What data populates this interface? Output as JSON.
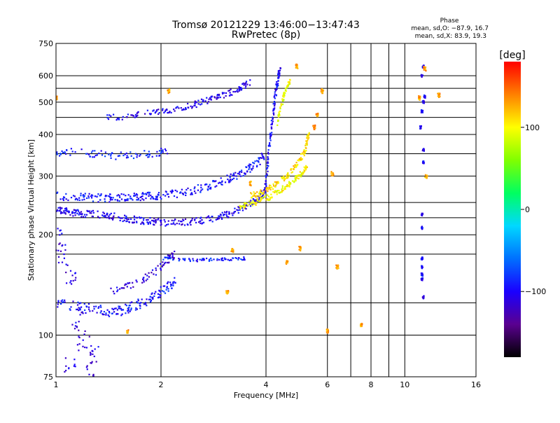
{
  "chart_data": {
    "type": "scatter",
    "title": "Tromsø 20121229 13:46:00−13:47:43",
    "subtitle": "RwPretec (8p)",
    "xlabel": "Frequency [MHz]",
    "ylabel": "Stationary phase Virtual Height [km]",
    "x_scale": "log",
    "y_scale": "log",
    "xlim": [
      1,
      16
    ],
    "ylim": [
      75,
      750
    ],
    "x_ticks": [
      1,
      2,
      4,
      6,
      8,
      10,
      16
    ],
    "x_tick_labels": [
      "1",
      "2",
      "4",
      "6",
      "8",
      "10",
      "16"
    ],
    "x_extra_gridlines": [
      7,
      9
    ],
    "y_ticks": [
      75,
      100,
      200,
      300,
      400,
      500,
      600,
      750
    ],
    "y_tick_labels": [
      "75",
      "100",
      "200",
      "300",
      "400",
      "500",
      "600",
      "750"
    ],
    "y_extra_gridlines": [
      125,
      175,
      225,
      250,
      350,
      450,
      550
    ],
    "grid": true,
    "stats": {
      "heading": "Phase",
      "line_o": "mean, sd,O: −87.9, 16.7",
      "line_x": "mean, sd,X:  83.9, 19.3"
    },
    "colorbar": {
      "unit_label": "[deg]",
      "range": [
        -180,
        180
      ],
      "ticks": [
        100,
        0,
        -100
      ],
      "tick_labels": [
        "100",
        "0",
        "−100"
      ],
      "colors": [
        "#000000",
        "#5a0090",
        "#1a00ff",
        "#0070ff",
        "#00d8ff",
        "#00ff60",
        "#80ff00",
        "#ffff00",
        "#ff8000",
        "#ff0000"
      ]
    },
    "traces": [
      {
        "name": "o_F_lower",
        "phase": -105,
        "points": [
          [
            1.0,
            238
          ],
          [
            1.05,
            236
          ],
          [
            1.1,
            234
          ],
          [
            1.15,
            233
          ],
          [
            1.2,
            232
          ],
          [
            1.3,
            230
          ],
          [
            1.4,
            228
          ],
          [
            1.5,
            226
          ],
          [
            1.6,
            224
          ],
          [
            1.7,
            222
          ],
          [
            1.8,
            220
          ],
          [
            1.9,
            219
          ],
          [
            2.0,
            218
          ],
          [
            2.2,
            218
          ],
          [
            2.4,
            219
          ],
          [
            2.6,
            221
          ],
          [
            2.8,
            224
          ],
          [
            3.0,
            228
          ],
          [
            3.2,
            233
          ],
          [
            3.4,
            240
          ],
          [
            3.6,
            248
          ],
          [
            3.8,
            258
          ],
          [
            3.95,
            268
          ]
        ],
        "spread": 0.05
      },
      {
        "name": "o_F_upper",
        "phase": -95,
        "points": [
          [
            1.0,
            262
          ],
          [
            1.1,
            260
          ],
          [
            1.2,
            259
          ],
          [
            1.3,
            258
          ],
          [
            1.4,
            258
          ],
          [
            1.5,
            258
          ],
          [
            1.6,
            259
          ],
          [
            1.7,
            260
          ],
          [
            1.8,
            261
          ],
          [
            1.9,
            262
          ],
          [
            2.0,
            263
          ],
          [
            2.2,
            266
          ],
          [
            2.4,
            270
          ],
          [
            2.6,
            276
          ],
          [
            2.8,
            283
          ],
          [
            3.0,
            290
          ],
          [
            3.2,
            298
          ],
          [
            3.4,
            307
          ],
          [
            3.6,
            318
          ],
          [
            3.8,
            330
          ],
          [
            3.95,
            345
          ]
        ],
        "spread": 0.055
      },
      {
        "name": "o_F_cusp",
        "phase": -100,
        "points": [
          [
            3.95,
            260
          ],
          [
            4.0,
            290
          ],
          [
            4.05,
            330
          ],
          [
            4.1,
            380
          ],
          [
            4.15,
            420
          ],
          [
            4.2,
            470
          ],
          [
            4.25,
            520
          ],
          [
            4.3,
            560
          ],
          [
            4.35,
            600
          ],
          [
            4.4,
            640
          ]
        ],
        "spread": 0.035
      },
      {
        "name": "x_F_lower",
        "phase": 100,
        "points": [
          [
            3.3,
            242
          ],
          [
            3.5,
            246
          ],
          [
            3.7,
            250
          ],
          [
            3.9,
            255
          ],
          [
            4.1,
            260
          ],
          [
            4.3,
            268
          ],
          [
            4.5,
            276
          ],
          [
            4.7,
            285
          ],
          [
            4.9,
            296
          ],
          [
            5.1,
            308
          ],
          [
            5.25,
            320
          ]
        ],
        "spread": 0.04
      },
      {
        "name": "x_F_upper",
        "phase": 110,
        "points": [
          [
            3.6,
            262
          ],
          [
            3.8,
            266
          ],
          [
            4.0,
            272
          ],
          [
            4.2,
            280
          ],
          [
            4.4,
            290
          ],
          [
            4.6,
            302
          ],
          [
            4.8,
            318
          ],
          [
            5.0,
            336
          ],
          [
            5.15,
            355
          ],
          [
            5.25,
            380
          ],
          [
            5.3,
            400
          ]
        ],
        "spread": 0.04
      },
      {
        "name": "x_F_cusp",
        "phase": 95,
        "points": [
          [
            4.3,
            430
          ],
          [
            4.4,
            480
          ],
          [
            4.5,
            520
          ],
          [
            4.6,
            560
          ],
          [
            4.7,
            580
          ]
        ],
        "spread": 0.03
      },
      {
        "name": "o_multihop_500",
        "phase": -105,
        "points": [
          [
            1.4,
            450
          ],
          [
            1.6,
            455
          ],
          [
            1.8,
            462
          ],
          [
            2.0,
            470
          ],
          [
            2.2,
            478
          ],
          [
            2.4,
            487
          ],
          [
            2.6,
            498
          ],
          [
            2.8,
            510
          ],
          [
            3.0,
            523
          ],
          [
            3.2,
            538
          ],
          [
            3.4,
            555
          ],
          [
            3.6,
            575
          ]
        ],
        "spread": 0.045
      },
      {
        "name": "o_multihop_350",
        "phase": -90,
        "points": [
          [
            1.0,
            350
          ],
          [
            1.1,
            355
          ],
          [
            1.3,
            350
          ],
          [
            1.5,
            345
          ],
          [
            1.7,
            348
          ],
          [
            1.9,
            352
          ],
          [
            2.1,
            357
          ]
        ],
        "spread": 0.05
      },
      {
        "name": "o_E_lower",
        "phase": -95,
        "points": [
          [
            1.0,
            125
          ],
          [
            1.1,
            123
          ],
          [
            1.2,
            121
          ],
          [
            1.3,
            119
          ],
          [
            1.4,
            118
          ],
          [
            1.5,
            118
          ],
          [
            1.6,
            120
          ],
          [
            1.7,
            123
          ],
          [
            1.8,
            126
          ],
          [
            1.9,
            130
          ],
          [
            2.0,
            135
          ],
          [
            2.1,
            140
          ],
          [
            2.2,
            145
          ]
        ],
        "spread": 0.07
      },
      {
        "name": "o_E_upper",
        "phase": -110,
        "points": [
          [
            1.4,
            135
          ],
          [
            1.6,
            140
          ],
          [
            1.8,
            148
          ],
          [
            2.0,
            160
          ],
          [
            2.1,
            170
          ],
          [
            2.2,
            175
          ]
        ],
        "spread": 0.05
      },
      {
        "name": "o_band_170",
        "phase": -90,
        "points": [
          [
            2.0,
            170
          ],
          [
            2.3,
            168
          ],
          [
            2.6,
            168
          ],
          [
            2.9,
            169
          ],
          [
            3.2,
            169
          ],
          [
            3.5,
            170
          ]
        ],
        "spread": 0.02
      },
      {
        "name": "o_low_stragglers",
        "phase": -110,
        "points": [
          [
            1.0,
            195
          ],
          [
            1.05,
            175
          ],
          [
            1.1,
            150
          ],
          [
            1.15,
            112
          ],
          [
            1.2,
            97
          ],
          [
            1.3,
            90
          ],
          [
            1.1,
            80
          ],
          [
            1.25,
            78
          ]
        ],
        "spread": 0.08
      },
      {
        "name": "column_11MHz",
        "phase": -100,
        "points": [
          [
            11.2,
            170
          ],
          [
            11.2,
            160
          ],
          [
            11.2,
            152
          ],
          [
            11.2,
            147
          ],
          [
            11.3,
            130
          ],
          [
            11.2,
            210
          ],
          [
            11.2,
            230
          ],
          [
            11.3,
            330
          ],
          [
            11.3,
            360
          ],
          [
            11.1,
            420
          ],
          [
            11.2,
            470
          ],
          [
            11.3,
            500
          ],
          [
            11.4,
            520
          ],
          [
            11.2,
            600
          ],
          [
            11.3,
            640
          ]
        ],
        "spread": 0.01
      },
      {
        "name": "scatter_high_x",
        "phase": 130,
        "points": [
          [
            4.9,
            640
          ],
          [
            5.5,
            420
          ],
          [
            5.6,
            460
          ],
          [
            5.8,
            540
          ],
          [
            6.2,
            305
          ],
          [
            6.4,
            160
          ],
          [
            7.5,
            107
          ],
          [
            6.0,
            103
          ],
          [
            4.6,
            165
          ],
          [
            5.0,
            182
          ],
          [
            3.2,
            180
          ],
          [
            3.6,
            285
          ],
          [
            11.5,
            300
          ],
          [
            11.4,
            630
          ],
          [
            12.5,
            525
          ],
          [
            11.0,
            515
          ],
          [
            3.1,
            134
          ],
          [
            2.1,
            540
          ],
          [
            1.0,
            515
          ],
          [
            1.6,
            103
          ]
        ],
        "spread": 0.015
      }
    ]
  }
}
